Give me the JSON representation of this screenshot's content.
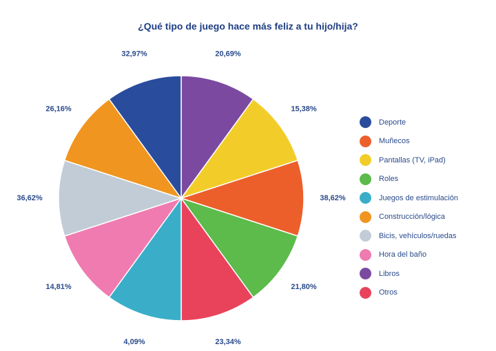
{
  "chart_data": {
    "type": "pie",
    "title": "¿Qué tipo de juego hace más feliz a tu hijo/hija?",
    "slices": [
      {
        "category": "Libros",
        "value": 20.69,
        "label": "20,69%",
        "color": "#7b4aa0"
      },
      {
        "category": "Pantallas (TV, iPad)",
        "value": 15.38,
        "label": "15,38%",
        "color": "#f2cd2a"
      },
      {
        "category": "Muñecos",
        "value": 38.62,
        "label": "38,62%",
        "color": "#ec5f2b"
      },
      {
        "category": "Roles",
        "value": 21.8,
        "label": "21,80%",
        "color": "#5cbb4b"
      },
      {
        "category": "Otros",
        "value": 23.34,
        "label": "23,34%",
        "color": "#e9435c"
      },
      {
        "category": "Juegos de estimulación",
        "value": 4.09,
        "label": "4,09%",
        "color": "#3aaec8"
      },
      {
        "category": "Hora del baño",
        "value": 14.81,
        "label": "14,81%",
        "color": "#ef7bb0"
      },
      {
        "category": "Bicis, vehículos/ruedas",
        "value": 36.62,
        "label": "36,62%",
        "color": "#c2ccd6"
      },
      {
        "category": "Construcción/lógica",
        "value": 26.16,
        "label": "26,16%",
        "color": "#f0951f"
      },
      {
        "category": "Deporte",
        "value": 32.97,
        "label": "32,97%",
        "color": "#2a4c9c"
      }
    ],
    "legend": [
      {
        "label": "Deporte",
        "color": "#2a4c9c"
      },
      {
        "label": "Muñecos",
        "color": "#ec5f2b"
      },
      {
        "label": "Pantallas (TV, iPad)",
        "color": "#f2cd2a"
      },
      {
        "label": "Roles",
        "color": "#5cbb4b"
      },
      {
        "label": "Juegos de estimulación",
        "color": "#3aaec8"
      },
      {
        "label": "Construcción/lógica",
        "color": "#f0951f"
      },
      {
        "label": "Bicis, vehículos/ruedas",
        "color": "#c2ccd6"
      },
      {
        "label": "Hora del baño",
        "color": "#ef7bb0"
      },
      {
        "label": "Libros",
        "color": "#7b4aa0"
      },
      {
        "label": "Otros",
        "color": "#e9435c"
      }
    ],
    "legend_position": "right"
  }
}
